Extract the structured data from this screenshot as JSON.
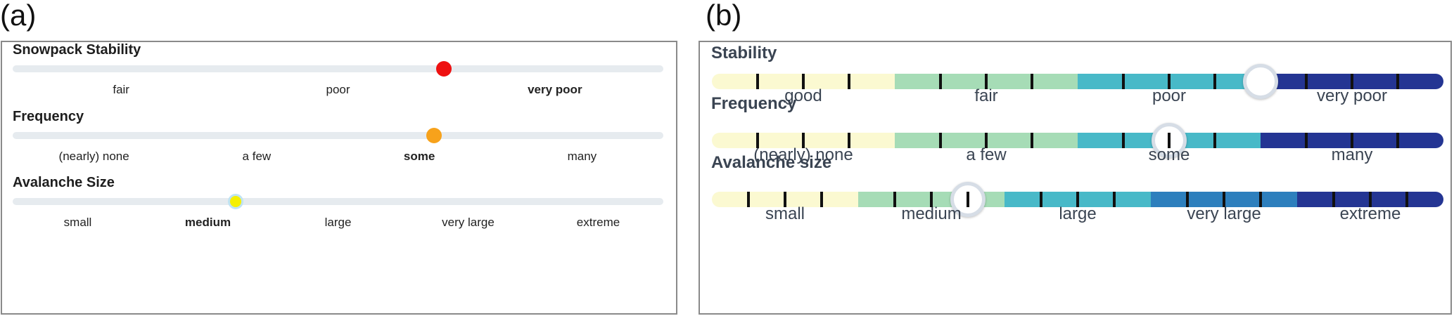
{
  "panel_a": {
    "label": "(a)",
    "sliders": [
      {
        "title": "Snowpack Stability",
        "options": [
          "fair",
          "poor",
          "very poor"
        ],
        "selected_index": 2,
        "value_fraction": 0.663,
        "thumb_color": "#ee1111"
      },
      {
        "title": "Frequency",
        "options": [
          "(nearly) none",
          "a few",
          "some",
          "many"
        ],
        "selected_index": 2,
        "value_fraction": 0.648,
        "thumb_color": "#f7a21b"
      },
      {
        "title": "Avalanche Size",
        "options": [
          "small",
          "medium",
          "large",
          "very large",
          "extreme"
        ],
        "selected_index": 1,
        "value_fraction": 0.343,
        "thumb_color": "#f5f000"
      }
    ]
  },
  "panel_b": {
    "label": "(b)",
    "sliders": [
      {
        "title": "Stability",
        "options": [
          "good",
          "fair",
          "poor",
          "very poor"
        ],
        "option_colors": [
          "#fbf9d1",
          "#a6dcb6",
          "#48b9c8",
          "#243593"
        ],
        "steps_per_option": 4,
        "value_fraction": 0.75
      },
      {
        "title": "Frequency",
        "options": [
          "(nearly) none",
          "a few",
          "some",
          "many"
        ],
        "option_colors": [
          "#fbf9d1",
          "#a6dcb6",
          "#48b9c8",
          "#243593"
        ],
        "steps_per_option": 4,
        "value_fraction": 0.625
      },
      {
        "title": "Avalanche size",
        "options": [
          "small",
          "medium",
          "large",
          "very large",
          "extreme"
        ],
        "option_colors": [
          "#fbf9d1",
          "#a6dcb6",
          "#48b9c8",
          "#2d7fbd",
          "#243593"
        ],
        "steps_per_option": 4,
        "value_fraction": 0.35
      }
    ]
  }
}
